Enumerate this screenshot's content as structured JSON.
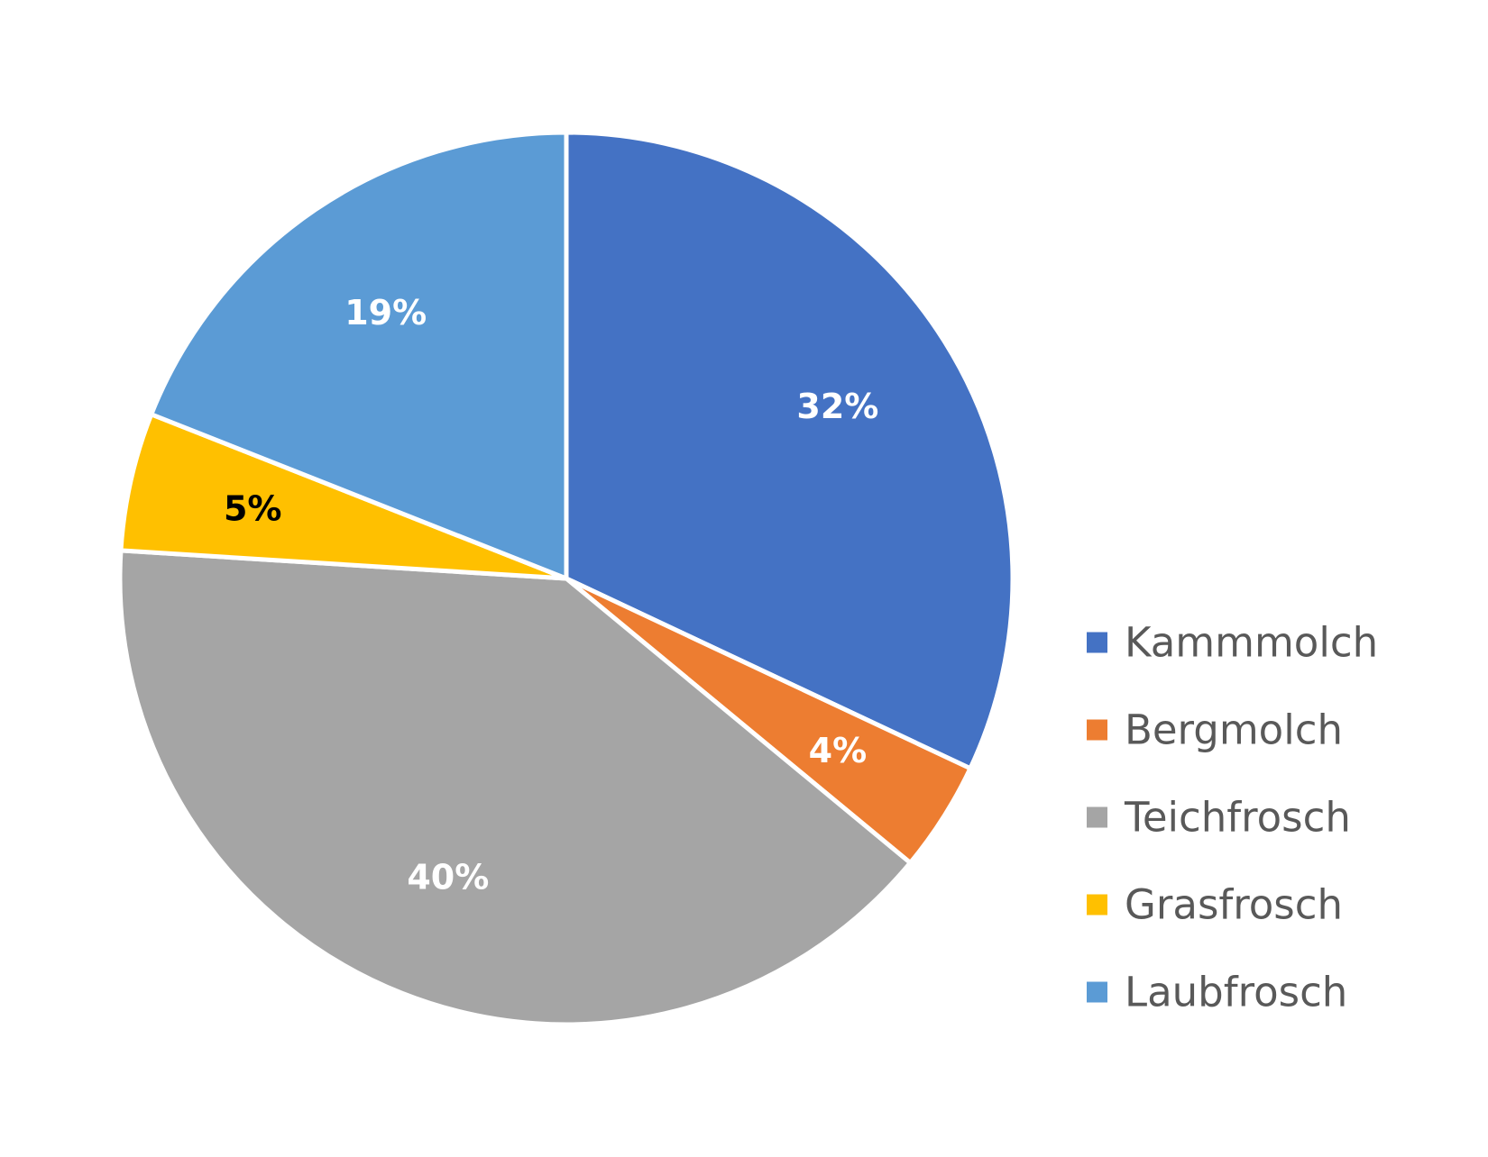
{
  "chart_data": {
    "type": "pie",
    "title": "",
    "categories": [
      "Kammmolch",
      "Bergmolch",
      "Teichfrosch",
      "Grasfrosch",
      "Laubfrosch"
    ],
    "values": [
      32,
      4,
      40,
      5,
      19
    ],
    "unit": "%",
    "data_labels": [
      "32%",
      "4%",
      "40%",
      "5%",
      "19%"
    ],
    "colors": [
      "#4472C4",
      "#ED7D31",
      "#A5A5A5",
      "#FFC000",
      "#5B9BD5"
    ],
    "label_colors": [
      "#FFFFFF",
      "#FFFFFF",
      "#FFFFFF",
      "#000000",
      "#FFFFFF"
    ],
    "start_angle": "12 o'clock",
    "direction": "clockwise",
    "legend": {
      "position": "right",
      "items": [
        "Kammmolch",
        "Bergmolch",
        "Teichfrosch",
        "Grasfrosch",
        "Laubfrosch"
      ]
    }
  }
}
